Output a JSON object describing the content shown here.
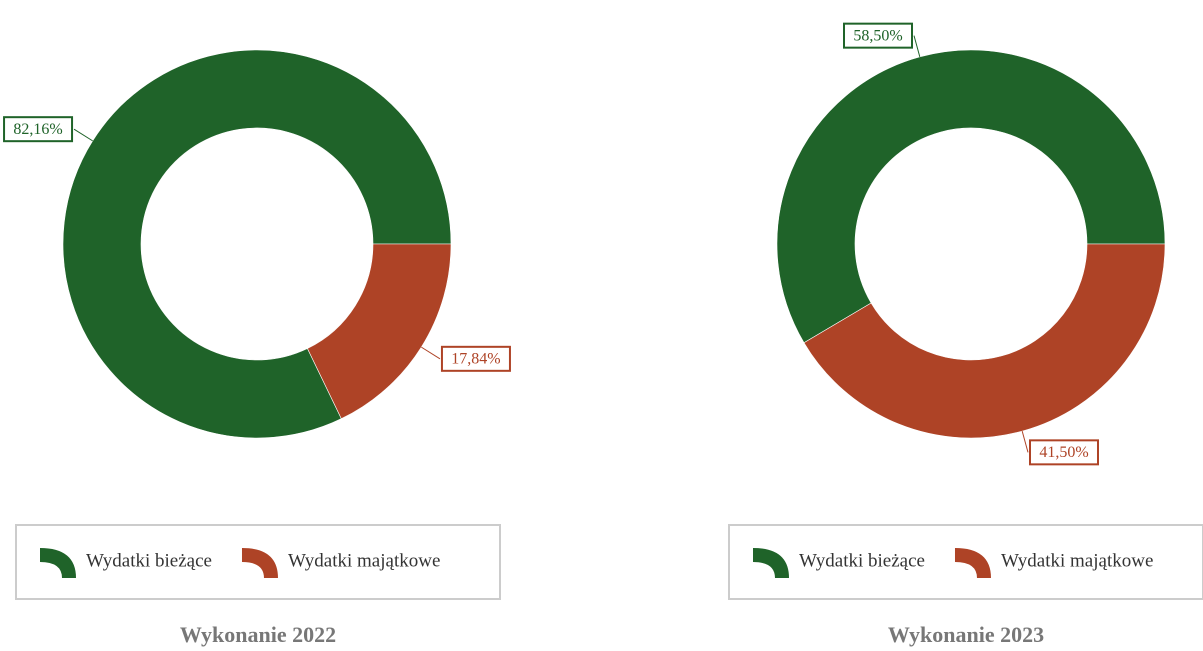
{
  "chart_data": [
    {
      "type": "donut",
      "title": "Wykonanie 2022",
      "categories": [
        "Wydatki bieżące",
        "Wydatki majątkowe"
      ],
      "values": [
        82.16,
        17.84
      ],
      "value_labels": [
        "82,16%",
        "17,84%"
      ],
      "colors": [
        "#1f6329",
        "#ae4326"
      ]
    },
    {
      "type": "donut",
      "title": "Wykonanie 2023",
      "categories": [
        "Wydatki bieżące",
        "Wydatki majątkowe"
      ],
      "values": [
        58.5,
        41.5
      ],
      "value_labels": [
        "58,50%",
        "41,50%"
      ],
      "colors": [
        "#1f6329",
        "#ae4326"
      ]
    }
  ]
}
